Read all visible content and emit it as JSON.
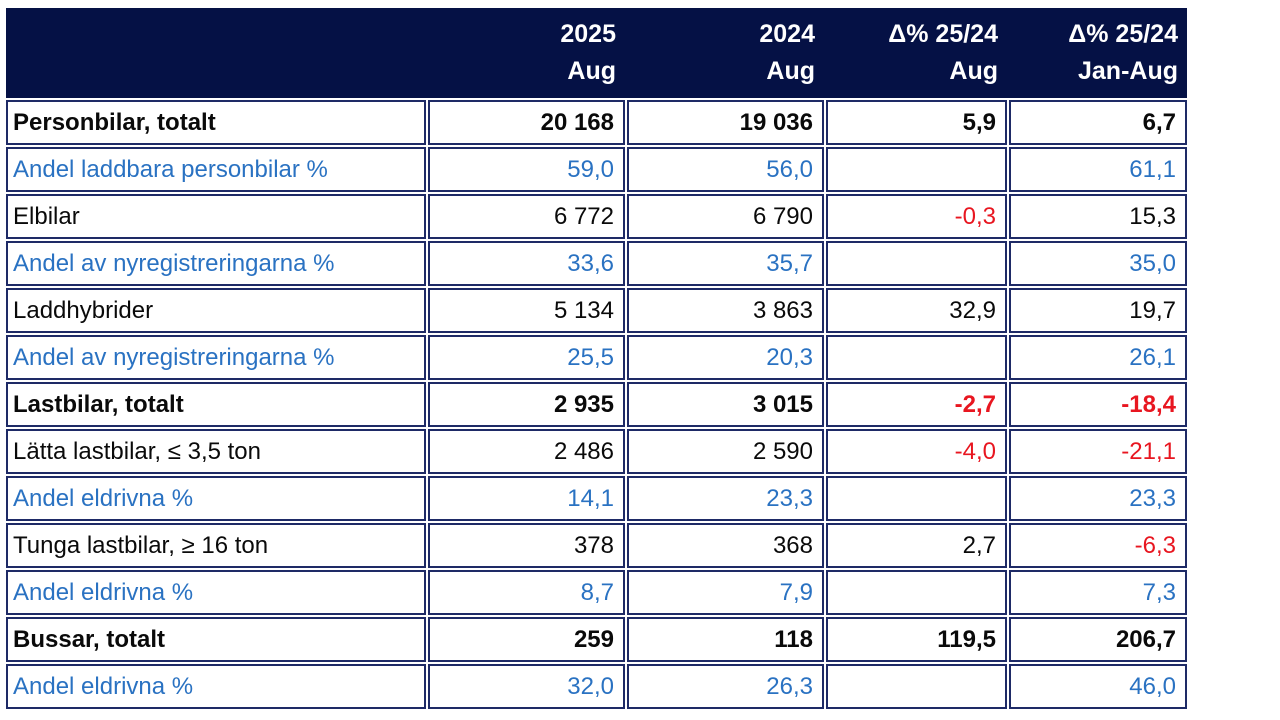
{
  "colors": {
    "header_bg": "#051145",
    "cell_border": "#1e2a66",
    "share_row_text": "#2a72c2",
    "negative_value_text": "#e81620",
    "default_text": "#0a0a0a",
    "header_text": "#ffffff",
    "background": "#ffffff"
  },
  "header": {
    "columns": [
      {
        "line1": "",
        "line2": ""
      },
      {
        "line1": "2025",
        "line2": "Aug"
      },
      {
        "line1": "2024",
        "line2": "Aug"
      },
      {
        "line1": "Δ% 25/24",
        "line2": "Aug"
      },
      {
        "line1": "Δ% 25/24",
        "line2": "Jan-Aug"
      }
    ]
  },
  "chart_data": {
    "type": "table",
    "columns": [
      "",
      "2025 Aug",
      "2024 Aug",
      "Δ% 25/24 Aug",
      "Δ% 25/24 Jan-Aug"
    ],
    "column_keys": [
      "label",
      "2025-aug",
      "2024-aug",
      "delta-pct-aug",
      "delta-pct-jan-aug"
    ],
    "rows": [
      {
        "label": "Personbilar, totalt",
        "type": "section",
        "values": [
          "20 168",
          "19 036",
          "5,9",
          "6,7"
        ]
      },
      {
        "label": "Andel laddbara personbilar %",
        "type": "share",
        "values": [
          "59,0",
          "56,0",
          "",
          "61,1"
        ]
      },
      {
        "label": "Elbilar",
        "type": "item",
        "values": [
          "6 772",
          "6 790",
          "-0,3",
          "15,3"
        ]
      },
      {
        "label": "Andel av nyregistreringarna %",
        "type": "share",
        "values": [
          "33,6",
          "35,7",
          "",
          "35,0"
        ]
      },
      {
        "label": "Laddhybrider",
        "type": "item",
        "values": [
          "5 134",
          "3 863",
          "32,9",
          "19,7"
        ]
      },
      {
        "label": "Andel av nyregistreringarna %",
        "type": "share",
        "values": [
          "25,5",
          "20,3",
          "",
          "26,1"
        ]
      },
      {
        "label": "Lastbilar, totalt",
        "type": "section",
        "values": [
          "2 935",
          "3 015",
          "-2,7",
          "-18,4"
        ]
      },
      {
        "label": "Lätta lastbilar, ≤ 3,5 ton",
        "type": "item",
        "values": [
          "2 486",
          "2 590",
          "-4,0",
          "-21,1"
        ]
      },
      {
        "label": "Andel eldrivna %",
        "type": "share",
        "values": [
          "14,1",
          "23,3",
          "",
          "23,3"
        ]
      },
      {
        "label": "Tunga lastbilar, ≥ 16 ton",
        "type": "item",
        "values": [
          "378",
          "368",
          "2,7",
          "-6,3"
        ]
      },
      {
        "label": "Andel eldrivna %",
        "type": "share",
        "values": [
          "8,7",
          "7,9",
          "",
          "7,3"
        ]
      },
      {
        "label": "Bussar, totalt",
        "type": "section",
        "values": [
          "259",
          "118",
          "119,5",
          "206,7"
        ]
      },
      {
        "label": "Andel eldrivna %",
        "type": "share",
        "values": [
          "32,0",
          "26,3",
          "",
          "46,0"
        ]
      }
    ]
  }
}
